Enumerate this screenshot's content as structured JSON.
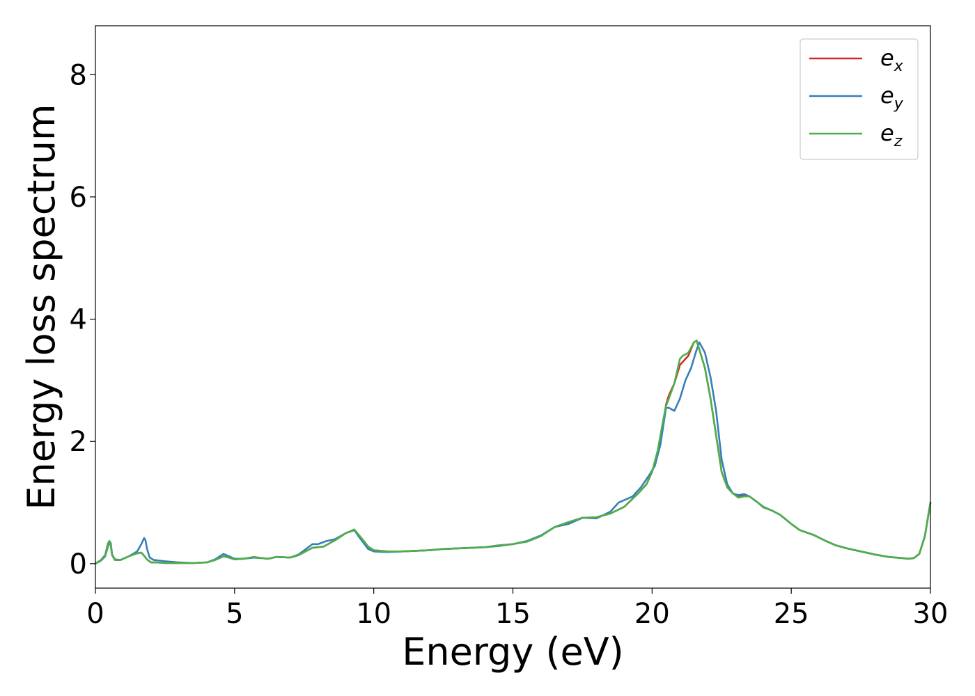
{
  "chart_data": {
    "type": "line",
    "title": "",
    "xlabel": "Energy (eV)",
    "ylabel": "Energy loss spectrum",
    "xlim": [
      0,
      30
    ],
    "ylim": [
      -0.4,
      8.8
    ],
    "xticks": [
      0,
      5,
      10,
      15,
      20,
      25,
      30
    ],
    "yticks": [
      0,
      2,
      4,
      6,
      8
    ],
    "grid": false,
    "legend_position": "top-right",
    "series": [
      {
        "name": "e_x",
        "legend_base": "e",
        "legend_sub": "x",
        "color": "#d62728",
        "x": [
          0,
          0.2,
          0.35,
          0.45,
          0.5,
          0.55,
          0.6,
          0.7,
          0.9,
          1.2,
          1.5,
          1.65,
          1.75,
          1.85,
          2.0,
          2.2,
          2.5,
          3.0,
          3.5,
          4.0,
          4.3,
          4.6,
          4.8,
          5.0,
          5.3,
          5.7,
          6.0,
          6.2,
          6.5,
          7.0,
          7.3,
          7.8,
          8.2,
          8.6,
          9.0,
          9.3,
          9.5,
          9.8,
          10.0,
          10.5,
          11.0,
          11.5,
          12.0,
          12.5,
          13.0,
          13.5,
          14.0,
          14.5,
          15.0,
          15.5,
          16.0,
          16.5,
          17.0,
          17.5,
          18.0,
          18.5,
          19.0,
          19.5,
          19.8,
          20.0,
          20.2,
          20.4,
          20.5,
          20.6,
          20.8,
          21.0,
          21.1,
          21.3,
          21.5,
          21.6,
          21.7,
          21.9,
          22.1,
          22.3,
          22.5,
          22.7,
          22.9,
          23.1,
          23.3,
          23.5,
          23.8,
          24.0,
          24.3,
          24.6,
          25.0,
          25.3,
          25.8,
          26.2,
          26.6,
          27.0,
          27.5,
          28.0,
          28.5,
          29.0,
          29.2,
          29.4,
          29.6,
          29.8,
          30.0
        ],
        "y": [
          0.0,
          0.06,
          0.14,
          0.32,
          0.36,
          0.3,
          0.14,
          0.06,
          0.06,
          0.12,
          0.17,
          0.18,
          0.13,
          0.07,
          0.02,
          0.02,
          0.01,
          0.01,
          0.01,
          0.02,
          0.06,
          0.12,
          0.1,
          0.07,
          0.08,
          0.1,
          0.09,
          0.08,
          0.11,
          0.1,
          0.14,
          0.26,
          0.28,
          0.38,
          0.5,
          0.55,
          0.45,
          0.28,
          0.22,
          0.2,
          0.2,
          0.21,
          0.22,
          0.24,
          0.25,
          0.26,
          0.27,
          0.3,
          0.32,
          0.36,
          0.45,
          0.6,
          0.68,
          0.75,
          0.76,
          0.82,
          0.93,
          1.15,
          1.3,
          1.5,
          1.8,
          2.3,
          2.6,
          2.75,
          2.95,
          3.25,
          3.3,
          3.4,
          3.62,
          3.65,
          3.5,
          3.2,
          2.7,
          2.1,
          1.5,
          1.25,
          1.15,
          1.1,
          1.12,
          1.1,
          1.0,
          0.92,
          0.87,
          0.8,
          0.65,
          0.55,
          0.47,
          0.38,
          0.3,
          0.25,
          0.2,
          0.15,
          0.11,
          0.09,
          0.08,
          0.09,
          0.16,
          0.45,
          1.0
        ]
      },
      {
        "name": "e_y",
        "legend_base": "e",
        "legend_sub": "y",
        "color": "#377eb8",
        "x": [
          0,
          0.2,
          0.35,
          0.45,
          0.5,
          0.55,
          0.6,
          0.7,
          0.9,
          1.2,
          1.5,
          1.65,
          1.75,
          1.8,
          1.85,
          1.95,
          2.1,
          2.5,
          3.0,
          3.5,
          4.0,
          4.3,
          4.6,
          4.8,
          5.0,
          5.3,
          5.7,
          6.0,
          6.2,
          6.5,
          7.0,
          7.3,
          7.8,
          8.0,
          8.3,
          8.6,
          9.0,
          9.3,
          9.5,
          9.8,
          10.0,
          10.5,
          11.0,
          11.5,
          12.0,
          12.5,
          13.0,
          13.5,
          14.0,
          14.5,
          15.0,
          15.5,
          16.0,
          16.5,
          17.0,
          17.5,
          18.0,
          18.5,
          18.8,
          19.0,
          19.3,
          19.6,
          19.9,
          20.1,
          20.3,
          20.5,
          20.6,
          20.8,
          21.0,
          21.2,
          21.4,
          21.6,
          21.7,
          21.9,
          22.1,
          22.3,
          22.5,
          22.7,
          22.9,
          23.1,
          23.3,
          23.5,
          23.8,
          24.0,
          24.3,
          24.6,
          25.0,
          25.3,
          25.8,
          26.2,
          26.6,
          27.0,
          27.5,
          28.0,
          28.5,
          29.0,
          29.2,
          29.4,
          29.6,
          29.8,
          30.0
        ],
        "y": [
          0.0,
          0.05,
          0.12,
          0.28,
          0.37,
          0.34,
          0.15,
          0.07,
          0.06,
          0.12,
          0.2,
          0.32,
          0.42,
          0.38,
          0.25,
          0.1,
          0.06,
          0.04,
          0.02,
          0.01,
          0.02,
          0.07,
          0.16,
          0.12,
          0.08,
          0.08,
          0.1,
          0.09,
          0.08,
          0.11,
          0.1,
          0.15,
          0.32,
          0.32,
          0.37,
          0.4,
          0.5,
          0.55,
          0.42,
          0.24,
          0.2,
          0.19,
          0.2,
          0.21,
          0.22,
          0.24,
          0.25,
          0.26,
          0.27,
          0.29,
          0.32,
          0.37,
          0.46,
          0.6,
          0.65,
          0.75,
          0.74,
          0.85,
          1.0,
          1.04,
          1.1,
          1.25,
          1.45,
          1.6,
          1.95,
          2.55,
          2.55,
          2.5,
          2.7,
          3.0,
          3.2,
          3.5,
          3.62,
          3.45,
          3.05,
          2.5,
          1.7,
          1.3,
          1.15,
          1.12,
          1.14,
          1.1,
          1.0,
          0.93,
          0.87,
          0.8,
          0.65,
          0.55,
          0.47,
          0.38,
          0.3,
          0.25,
          0.2,
          0.15,
          0.11,
          0.09,
          0.08,
          0.09,
          0.16,
          0.45,
          1.0
        ]
      },
      {
        "name": "e_z",
        "legend_base": "e",
        "legend_sub": "z",
        "color": "#4daf4a",
        "x": [
          0,
          0.2,
          0.35,
          0.45,
          0.5,
          0.55,
          0.6,
          0.7,
          0.9,
          1.2,
          1.5,
          1.65,
          1.75,
          1.85,
          2.0,
          2.2,
          2.5,
          3.0,
          3.5,
          4.0,
          4.3,
          4.6,
          4.8,
          5.0,
          5.3,
          5.7,
          6.0,
          6.2,
          6.5,
          7.0,
          7.3,
          7.8,
          8.2,
          8.6,
          9.0,
          9.3,
          9.5,
          9.8,
          10.0,
          10.5,
          11.0,
          11.5,
          12.0,
          12.5,
          13.0,
          13.5,
          14.0,
          14.5,
          15.0,
          15.5,
          16.0,
          16.5,
          17.0,
          17.5,
          18.0,
          18.5,
          19.0,
          19.5,
          19.8,
          20.0,
          20.2,
          20.4,
          20.5,
          20.6,
          20.8,
          21.0,
          21.1,
          21.3,
          21.5,
          21.6,
          21.7,
          21.9,
          22.1,
          22.3,
          22.5,
          22.7,
          22.9,
          23.1,
          23.3,
          23.5,
          23.8,
          24.0,
          24.3,
          24.6,
          25.0,
          25.3,
          25.8,
          26.2,
          26.6,
          27.0,
          27.5,
          28.0,
          28.5,
          29.0,
          29.2,
          29.4,
          29.6,
          29.8,
          30.0
        ],
        "y": [
          0.0,
          0.06,
          0.14,
          0.33,
          0.37,
          0.31,
          0.14,
          0.06,
          0.06,
          0.12,
          0.17,
          0.18,
          0.13,
          0.07,
          0.02,
          0.02,
          0.01,
          0.01,
          0.01,
          0.02,
          0.06,
          0.12,
          0.1,
          0.07,
          0.08,
          0.11,
          0.09,
          0.08,
          0.11,
          0.1,
          0.14,
          0.26,
          0.28,
          0.38,
          0.5,
          0.56,
          0.45,
          0.28,
          0.22,
          0.2,
          0.2,
          0.21,
          0.22,
          0.24,
          0.25,
          0.26,
          0.27,
          0.3,
          0.32,
          0.36,
          0.45,
          0.6,
          0.68,
          0.75,
          0.76,
          0.82,
          0.93,
          1.15,
          1.3,
          1.5,
          1.85,
          2.35,
          2.58,
          2.7,
          2.95,
          3.35,
          3.4,
          3.45,
          3.62,
          3.65,
          3.5,
          3.2,
          2.7,
          2.1,
          1.5,
          1.25,
          1.15,
          1.08,
          1.1,
          1.1,
          1.0,
          0.92,
          0.87,
          0.8,
          0.65,
          0.55,
          0.47,
          0.38,
          0.3,
          0.25,
          0.2,
          0.15,
          0.11,
          0.09,
          0.08,
          0.09,
          0.16,
          0.45,
          1.0
        ]
      }
    ]
  }
}
